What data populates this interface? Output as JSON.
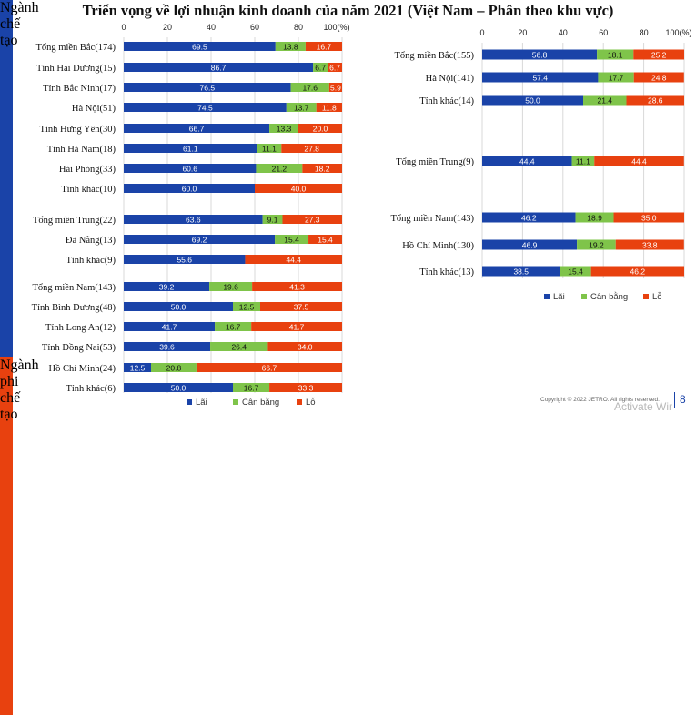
{
  "title": "Triển vọng về lợi nhuận kinh doanh của năm 2021 (Việt Nam – Phân theo khu vực)",
  "band_left": "Ngành chế tạo",
  "band_right": "Ngành phi chế tạo",
  "footer": "Copyright © 2022 JETRO. All rights reserved.",
  "page_number": "8",
  "watermark": "Activate Wir",
  "colors": {
    "lai": "#1a43a8",
    "can_bang": "#7fc44a",
    "lo": "#e8410f"
  },
  "chart_data": [
    {
      "type": "bar",
      "stacked": true,
      "orientation": "horizontal",
      "axis_ticks": [
        "0",
        "20",
        "40",
        "60",
        "80",
        "100(%)"
      ],
      "xlim": [
        0,
        100
      ],
      "legend": "bottom",
      "series_names": [
        "Lãi",
        "Cân bằng",
        "Lỗ"
      ],
      "rows": [
        {
          "label": "Tổng miền Bắc(174)",
          "values": [
            69.5,
            13.8,
            16.7
          ]
        },
        {
          "label": "Tỉnh Hải Dương(15)",
          "values": [
            86.7,
            6.7,
            6.7
          ]
        },
        {
          "label": "Tỉnh Bắc Ninh(17)",
          "values": [
            76.5,
            17.6,
            5.9
          ]
        },
        {
          "label": "Hà Nội(51)",
          "values": [
            74.5,
            13.7,
            11.8
          ]
        },
        {
          "label": "Tỉnh Hưng Yên(30)",
          "values": [
            66.7,
            13.3,
            20.0
          ]
        },
        {
          "label": "Tỉnh Hà Nam(18)",
          "values": [
            61.1,
            11.1,
            27.8
          ]
        },
        {
          "label": "Hải Phòng(33)",
          "values": [
            60.6,
            21.2,
            18.2
          ]
        },
        {
          "label": "Tỉnh khác(10)",
          "values": [
            60.0,
            0,
            40.0
          ]
        },
        {
          "label": "Tổng miền Trung(22)",
          "values": [
            63.6,
            9.1,
            27.3
          ]
        },
        {
          "label": "Đà Nẵng(13)",
          "values": [
            69.2,
            15.4,
            15.4
          ]
        },
        {
          "label": "Tỉnh khác(9)",
          "values": [
            55.6,
            0,
            44.4
          ]
        },
        {
          "label": "Tổng miền Nam(143)",
          "values": [
            39.2,
            19.6,
            41.3
          ]
        },
        {
          "label": "Tỉnh Bình Dương(48)",
          "values": [
            50.0,
            12.5,
            37.5
          ]
        },
        {
          "label": "Tỉnh Long An(12)",
          "values": [
            41.7,
            16.7,
            41.7
          ]
        },
        {
          "label": "Tỉnh Đồng Nai(53)",
          "values": [
            39.6,
            26.4,
            34.0
          ]
        },
        {
          "label": "Hồ Chí Minh(24)",
          "values": [
            12.5,
            20.8,
            66.7
          ]
        },
        {
          "label": "Tỉnh khác(6)",
          "values": [
            50.0,
            16.7,
            33.3
          ]
        }
      ]
    },
    {
      "type": "bar",
      "stacked": true,
      "orientation": "horizontal",
      "axis_ticks": [
        "0",
        "20",
        "40",
        "60",
        "80",
        "100(%)"
      ],
      "xlim": [
        0,
        100
      ],
      "legend": "bottom",
      "series_names": [
        "Lãi",
        "Cân bằng",
        "Lỗ"
      ],
      "rows": [
        {
          "label": "Tổng miền Bắc(155)",
          "values": [
            56.8,
            18.1,
            25.2
          ]
        },
        {
          "label": "Hà Nội(141)",
          "values": [
            57.4,
            17.7,
            24.8
          ]
        },
        {
          "label": "Tỉnh khác(14)",
          "values": [
            50.0,
            21.4,
            28.6
          ]
        },
        {
          "label": "Tổng miền Trung(9)",
          "values": [
            44.4,
            11.1,
            44.4
          ]
        },
        {
          "label": "Tổng miền Nam(143)",
          "values": [
            46.2,
            18.9,
            35.0
          ]
        },
        {
          "label": "Hồ Chí Minh(130)",
          "values": [
            46.9,
            19.2,
            33.8
          ]
        },
        {
          "label": "Tỉnh khác(13)",
          "values": [
            38.5,
            15.4,
            46.2
          ]
        }
      ]
    }
  ]
}
